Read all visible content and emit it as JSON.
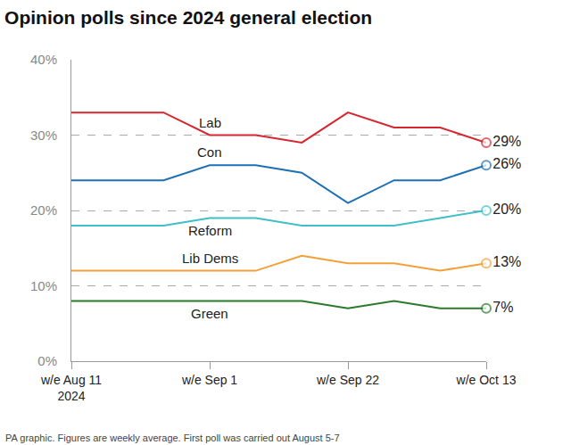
{
  "chart_data": {
    "type": "line",
    "title": "Opinion polls since 2024 general election",
    "source": "PA graphic. Figures are weekly average. First poll was carried out August 5-7",
    "categories": [
      "w/e Aug 11\n2024",
      null,
      null,
      "w/e Sep 1",
      null,
      null,
      "w/e Sep 22",
      null,
      null,
      "w/e Oct 13"
    ],
    "series": [
      {
        "name": "Lab",
        "color": "#d6262f",
        "values": [
          33,
          33,
          33,
          30,
          30,
          29,
          33,
          31,
          31,
          29
        ],
        "value_labels": [
          null,
          null,
          null,
          null,
          null,
          null,
          null,
          null,
          null,
          "29%"
        ]
      },
      {
        "name": "Con",
        "color": "#1f6fb5",
        "values": [
          24,
          24,
          24,
          26,
          26,
          25,
          21,
          24,
          24,
          26
        ],
        "value_labels": [
          null,
          null,
          null,
          null,
          null,
          null,
          null,
          null,
          null,
          "26%"
        ]
      },
      {
        "name": "Reform",
        "color": "#3fbfc8",
        "values": [
          18,
          18,
          18,
          19,
          19,
          18,
          18,
          18,
          19,
          20
        ],
        "value_labels": [
          null,
          null,
          null,
          null,
          null,
          null,
          null,
          null,
          null,
          "20%"
        ]
      },
      {
        "name": "Lib Dems",
        "color": "#f2a03a",
        "values": [
          12,
          12,
          12,
          12,
          12,
          14,
          13,
          13,
          12,
          13
        ],
        "value_labels": [
          null,
          null,
          null,
          null,
          null,
          null,
          null,
          null,
          null,
          "13%"
        ]
      },
      {
        "name": "Green",
        "color": "#2b7a2b",
        "values": [
          8,
          8,
          8,
          8,
          8,
          8,
          7,
          8,
          7,
          7
        ],
        "value_labels": [
          null,
          null,
          null,
          null,
          null,
          null,
          null,
          null,
          null,
          "7%"
        ]
      }
    ],
    "ylim": [
      0,
      40
    ],
    "yticks": [
      {
        "value": 0,
        "label": "0%"
      },
      {
        "value": 10,
        "label": "10%"
      },
      {
        "value": 20,
        "label": "20%"
      },
      {
        "value": 30,
        "label": "30%"
      },
      {
        "value": 40,
        "label": "40%"
      }
    ],
    "grid": true,
    "marker": "circle",
    "data_labels": true
  }
}
